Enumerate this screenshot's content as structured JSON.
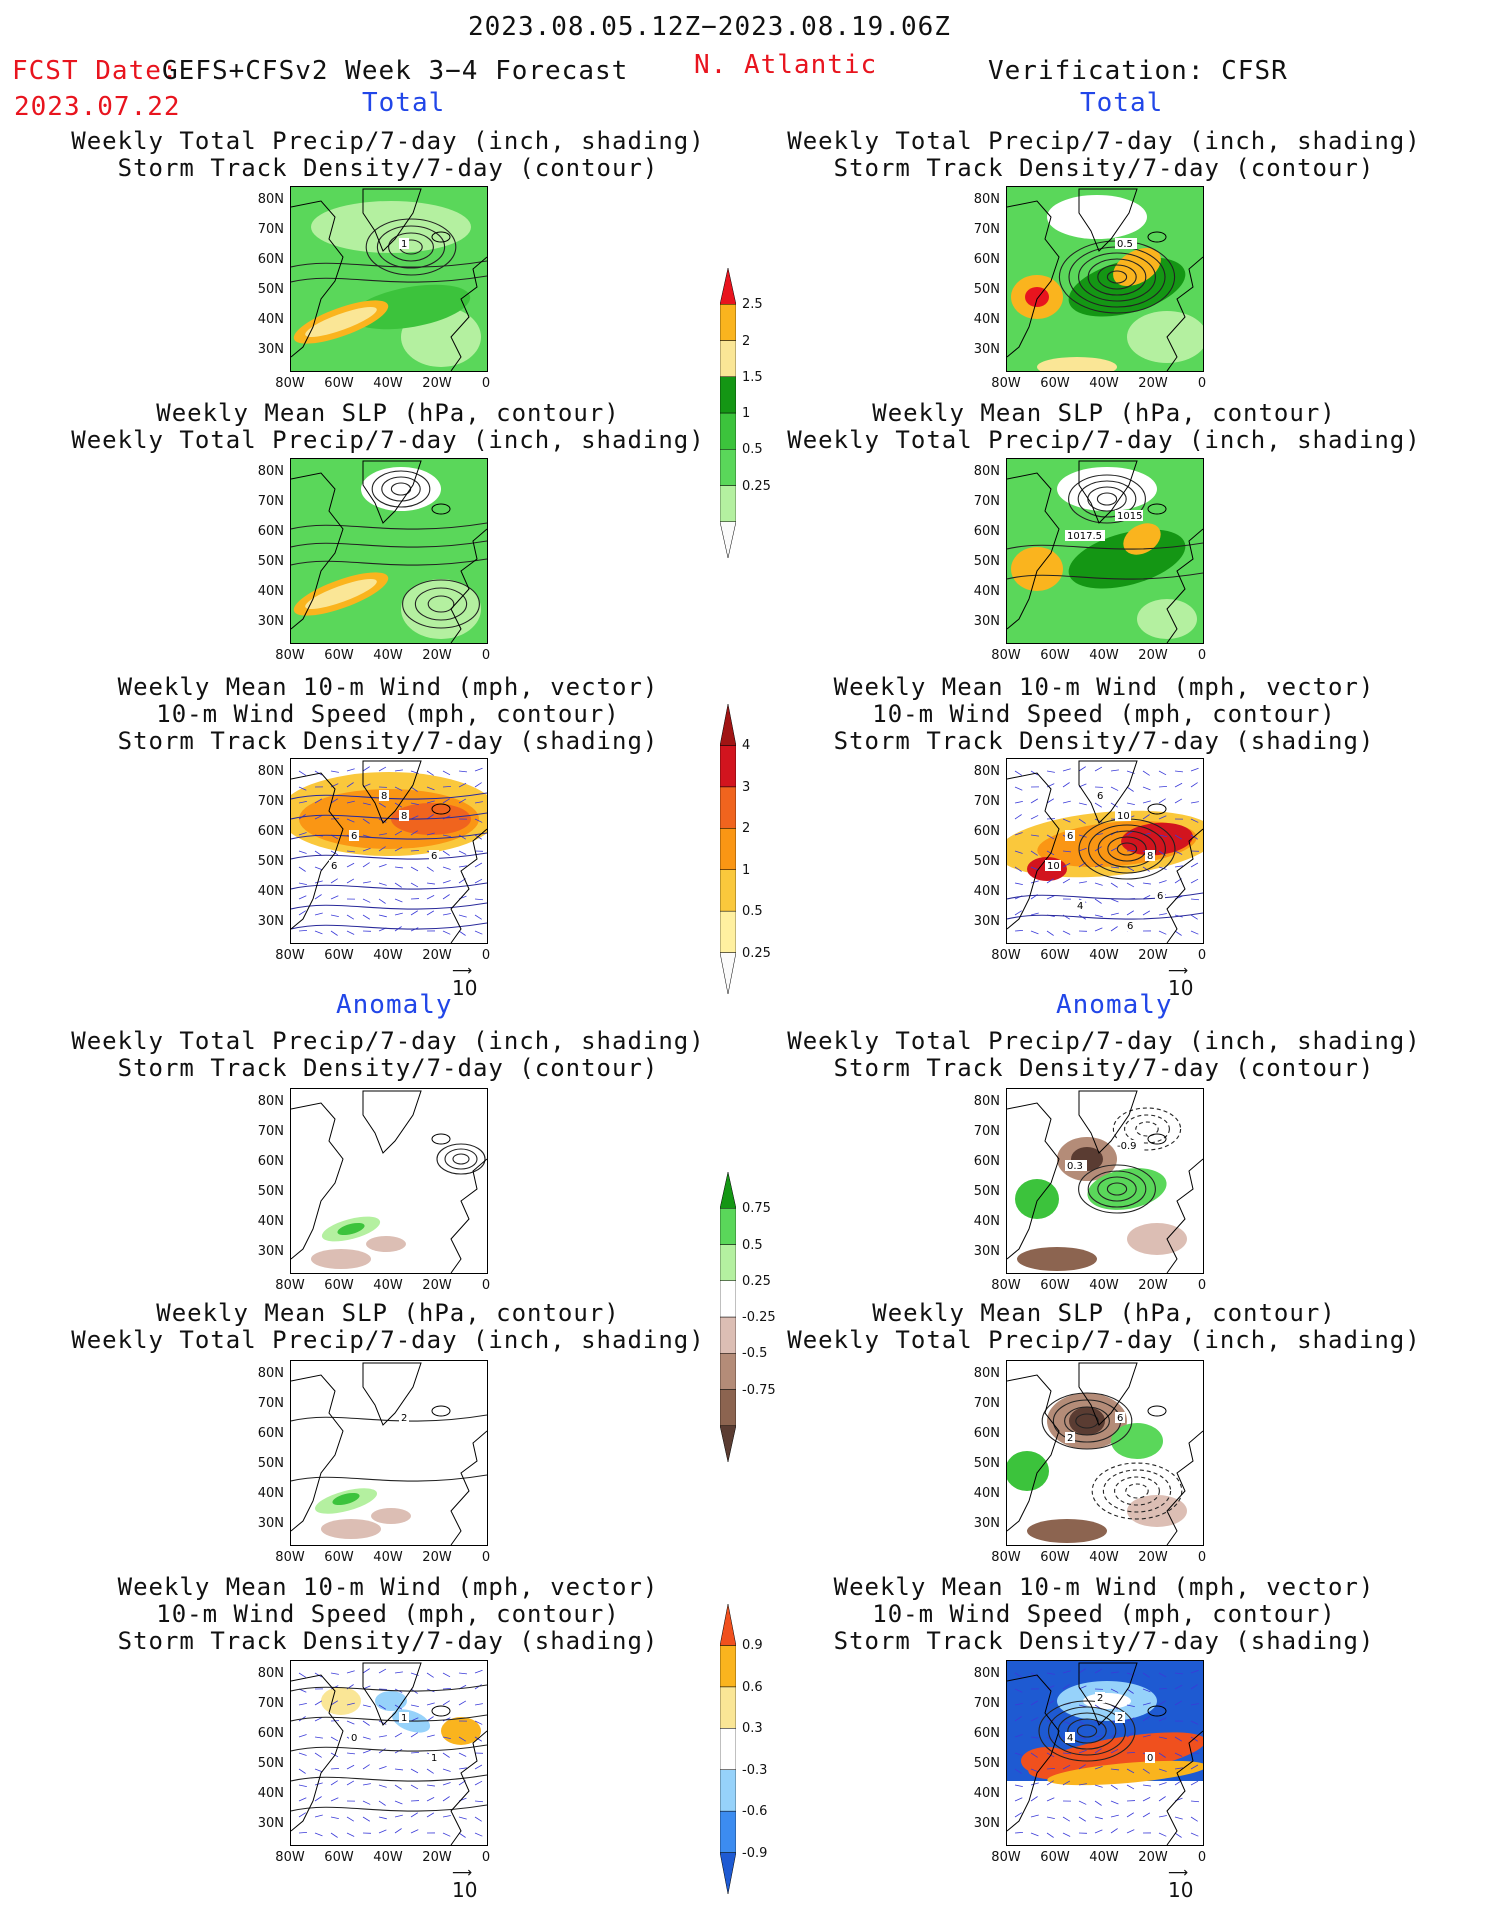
{
  "header": {
    "period": "2023.08.05.12Z−2023.08.19.06Z",
    "fcst_label": "FCST Date:",
    "model": "GEFS+CFSv2 Week 3−4 Forecast",
    "fcst_date": "2023.07.22",
    "region": "N. Atlantic",
    "verification": "Verification: CFSR"
  },
  "sections": {
    "total": "Total",
    "anomaly": "Anomaly"
  },
  "titles": {
    "precip_track": "Weekly Total Precip/7-day (inch, shading)\nStorm Track Density/7-day (contour)",
    "slp_precip": "Weekly Mean SLP (hPa, contour)\nWeekly Total Precip/7-day (inch, shading)",
    "wind_track": "Weekly Mean 10-m Wind (mph, vector)\n10-m Wind Speed (mph, contour)\nStorm Track Density/7-day (shading)"
  },
  "axes": {
    "lat": [
      "80N",
      "70N",
      "60N",
      "50N",
      "40N",
      "30N"
    ],
    "lon": [
      "80W",
      "60W",
      "40W",
      "20W",
      "0"
    ]
  },
  "reference_vector": "10",
  "contour_labels": {
    "fc_total_track": [
      "1"
    ],
    "ver_total_track": [
      "0.5"
    ],
    "ver_total_slp": [
      "1015",
      "1017.5"
    ],
    "fc_total_wind": [
      "8",
      "6",
      "6",
      "8",
      "6"
    ],
    "ver_total_wind": [
      "10",
      "6",
      "8",
      "6",
      "10",
      "6",
      "4",
      "6"
    ],
    "ver_anom_track": [
      "-0.9",
      "0.3"
    ],
    "fc_anom_slp": [
      "2"
    ],
    "ver_anom_slp": [
      "6",
      "2"
    ],
    "fc_anom_wind": [
      "1",
      "0",
      "1"
    ],
    "ver_anom_wind": [
      "2",
      "4",
      "0",
      "2"
    ]
  },
  "colorbars": {
    "precip_total": {
      "labels": [
        "2.5",
        "2",
        "1.5",
        "1",
        "0.5",
        "0.25"
      ],
      "colors": [
        "#fbfbfb",
        "#b4f0a0",
        "#5ad75a",
        "#3cc33c",
        "#149614",
        "#fae696",
        "#fab41e",
        "#e8141e"
      ]
    },
    "track_total": {
      "labels": [
        "4",
        "3",
        "2",
        "1",
        "0.5",
        "0.25"
      ],
      "colors": [
        "#fbfbfb",
        "#fff0a0",
        "#fac83c",
        "#fa9614",
        "#f0641e",
        "#d2141e",
        "#a01414"
      ]
    },
    "precip_anom": {
      "labels": [
        "0.75",
        "0.5",
        "0.25",
        "-0.25",
        "-0.5",
        "-0.75"
      ],
      "colors": [
        "#5a3c32",
        "#8c6450",
        "#b48c78",
        "#dcbeb4",
        "#ffffff",
        "#b4f0a0",
        "#5ad75a",
        "#149614"
      ]
    },
    "track_anom": {
      "labels": [
        "0.9",
        "0.6",
        "0.3",
        "-0.3",
        "-0.6",
        "-0.9"
      ],
      "colors": [
        "#1e5ad2",
        "#3c8cf0",
        "#96d2fa",
        "#ffffff",
        "#fae696",
        "#fab41e",
        "#f0501e"
      ]
    }
  }
}
